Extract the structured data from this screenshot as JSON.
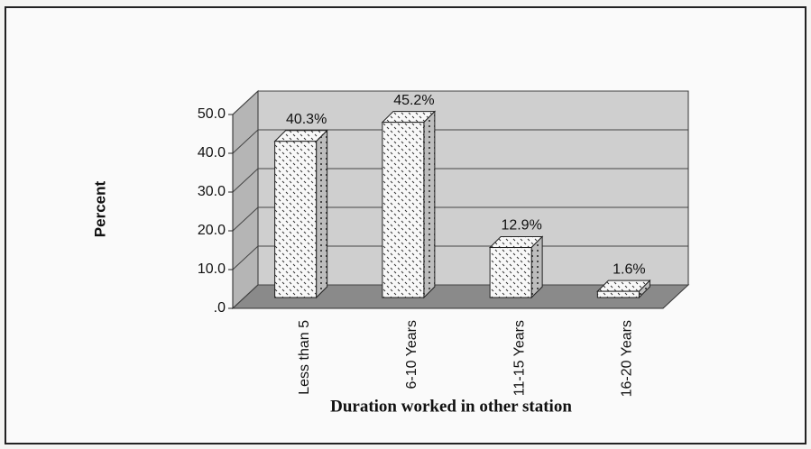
{
  "chart_data": {
    "type": "bar3d",
    "y_label": "Percent",
    "x_label": "Duration worked in other station",
    "categories": [
      "Less than 5",
      "6-10 Years",
      "11-15 Years",
      "16-20 Years"
    ],
    "values": [
      40.3,
      45.2,
      12.9,
      1.6
    ],
    "value_labels": [
      "40.3%",
      "45.2%",
      "12.9%",
      "1.6%"
    ],
    "ylim": [
      0,
      50
    ],
    "yticks": [
      {
        "value": 0,
        "label": ".0"
      },
      {
        "value": 10,
        "label": "10.0"
      },
      {
        "value": 20,
        "label": "20.0"
      },
      {
        "value": 30,
        "label": "30.0"
      },
      {
        "value": 40,
        "label": "40.0"
      },
      {
        "value": 50,
        "label": "50.0"
      }
    ],
    "grid": true
  }
}
